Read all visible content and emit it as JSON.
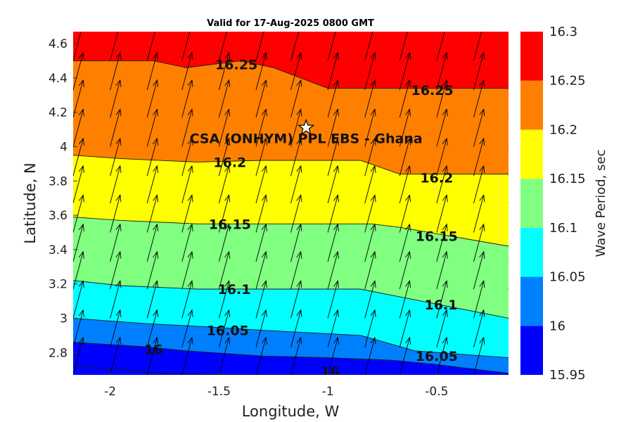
{
  "chart_data": {
    "type": "heatmap",
    "subtype": "filled-contour-with-vector-arrows",
    "title": "Valid for 17-Aug-2025 0800 GMT",
    "xlabel": "Longitude, W",
    "ylabel": "Latitude, N",
    "xlim": [
      -2.17,
      -0.17
    ],
    "ylim": [
      2.67,
      4.67
    ],
    "xticks": [
      -2,
      -1.5,
      -1,
      -0.5
    ],
    "yticks": [
      2.8,
      3,
      3.2,
      3.4,
      3.6,
      3.8,
      4,
      4.2,
      4.4,
      4.6
    ],
    "colorbar": {
      "label": "Wave Period, sec",
      "ticks": [
        15.95,
        16,
        16.05,
        16.1,
        16.15,
        16.2,
        16.25,
        16.3
      ],
      "levels": [
        {
          "min": 15.95,
          "max": 16.0,
          "color": "#0000ff"
        },
        {
          "min": 16.0,
          "max": 16.05,
          "color": "#0080ff"
        },
        {
          "min": 16.05,
          "max": 16.1,
          "color": "#00ffff"
        },
        {
          "min": 16.1,
          "max": 16.15,
          "color": "#80ff80"
        },
        {
          "min": 16.15,
          "max": 16.2,
          "color": "#ffff00"
        },
        {
          "min": 16.2,
          "max": 16.25,
          "color": "#ff8000"
        },
        {
          "min": 16.25,
          "max": 16.3,
          "color": "#ff0000"
        }
      ]
    },
    "contours": [
      {
        "level": 16.0,
        "x": [
          -2.17,
          -1.95,
          -1.7,
          -1.4,
          -1.1,
          -0.9,
          -0.7,
          -0.55
        ],
        "y": [
          2.72,
          2.7,
          2.675,
          2.67,
          2.67,
          2.67,
          2.66,
          2.65
        ]
      },
      {
        "level": 16.0,
        "x": [
          -2.17,
          -1.85,
          -1.65,
          -1.3,
          -1.0,
          -0.7,
          -0.5,
          -0.17
        ],
        "y": [
          2.86,
          2.835,
          2.81,
          2.78,
          2.77,
          2.755,
          2.73,
          2.68
        ]
      },
      {
        "level": 16.05,
        "x": [
          -2.17,
          -1.85,
          -1.55,
          -1.3,
          -1.0,
          -0.85,
          -0.6,
          -0.17
        ],
        "y": [
          3.0,
          2.97,
          2.95,
          2.93,
          2.91,
          2.9,
          2.81,
          2.77
        ]
      },
      {
        "level": 16.1,
        "x": [
          -2.17,
          -1.95,
          -1.6,
          -1.3,
          -0.85,
          -0.65,
          -0.17
        ],
        "y": [
          3.22,
          3.19,
          3.17,
          3.17,
          3.17,
          3.12,
          3.0
        ]
      },
      {
        "level": 16.15,
        "x": [
          -2.17,
          -1.95,
          -1.6,
          -1.3,
          -0.8,
          -0.67,
          -0.17
        ],
        "y": [
          3.59,
          3.57,
          3.55,
          3.55,
          3.55,
          3.53,
          3.42
        ]
      },
      {
        "level": 16.2,
        "x": [
          -2.17,
          -1.95,
          -1.6,
          -1.3,
          -0.85,
          -0.67,
          -0.17
        ],
        "y": [
          3.95,
          3.93,
          3.91,
          3.92,
          3.92,
          3.84,
          3.84
        ]
      },
      {
        "level": 16.25,
        "x": [
          -2.17,
          -1.8,
          -1.65,
          -1.4,
          -1.25,
          -1.0,
          -0.17
        ],
        "y": [
          4.5,
          4.5,
          4.46,
          4.5,
          4.46,
          4.34,
          4.34
        ]
      }
    ],
    "contour_labels": [
      {
        "text": "16.25",
        "x": -1.42,
        "y": 4.48
      },
      {
        "text": "16.25",
        "x": -0.52,
        "y": 4.33
      },
      {
        "text": "16.2",
        "x": -1.45,
        "y": 3.91
      },
      {
        "text": "16.2",
        "x": -0.5,
        "y": 3.82
      },
      {
        "text": "16.15",
        "x": -1.45,
        "y": 3.55
      },
      {
        "text": "16.15",
        "x": -0.5,
        "y": 3.48
      },
      {
        "text": "16.1",
        "x": -1.43,
        "y": 3.17
      },
      {
        "text": "16.1",
        "x": -0.48,
        "y": 3.08
      },
      {
        "text": "16.05",
        "x": -1.46,
        "y": 2.93
      },
      {
        "text": "16.05",
        "x": -0.5,
        "y": 2.78
      },
      {
        "text": "16",
        "x": -1.8,
        "y": 2.82
      },
      {
        "text": "16",
        "x": -0.99,
        "y": 2.69
      }
    ],
    "vectors": {
      "x": [
        -2.17,
        -2.0,
        -1.83,
        -1.67,
        -1.5,
        -1.33,
        -1.17,
        -1.0,
        -0.83,
        -0.67,
        -0.5,
        -0.33,
        -0.17
      ],
      "y": [
        2.67,
        2.83,
        3.0,
        3.17,
        3.33,
        3.5,
        3.67,
        3.83,
        4.0,
        4.17,
        4.33,
        4.5,
        4.67
      ],
      "direction_note": "uniform direction toward north-northeast"
    },
    "site": {
      "label": "CSA (ONHYM) PPL EBS  - Ghana",
      "x": -1.1,
      "y": 4.11,
      "marker": "star"
    }
  }
}
